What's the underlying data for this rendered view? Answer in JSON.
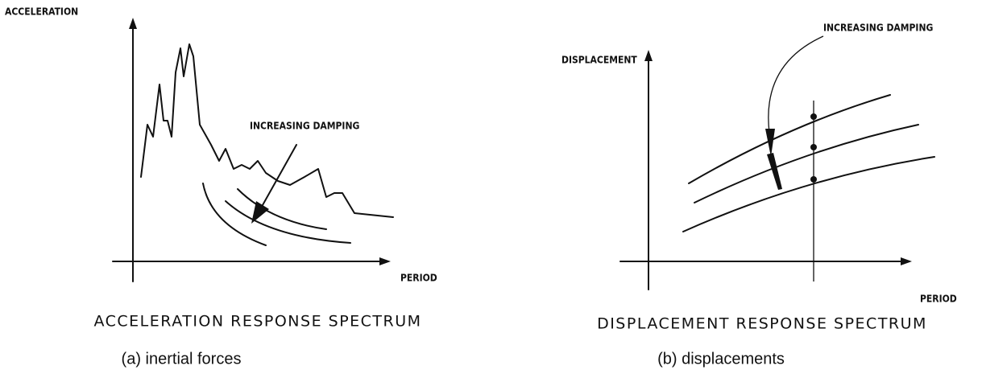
{
  "panels": [
    {
      "y_axis_label": "ACCELERATION",
      "x_axis_label": "PERIOD",
      "annotation": "INCREASING DAMPING",
      "title": "ACCELERATION RESPONSE SPECTRUM",
      "caption": "(a) inertial forces"
    },
    {
      "y_axis_label": "DISPLACEMENT",
      "x_axis_label": "PERIOD",
      "annotation": "INCREASING DAMPING",
      "title": "DISPLACEMENT RESPONSE SPECTRUM",
      "caption": "(b) displacements"
    }
  ]
}
